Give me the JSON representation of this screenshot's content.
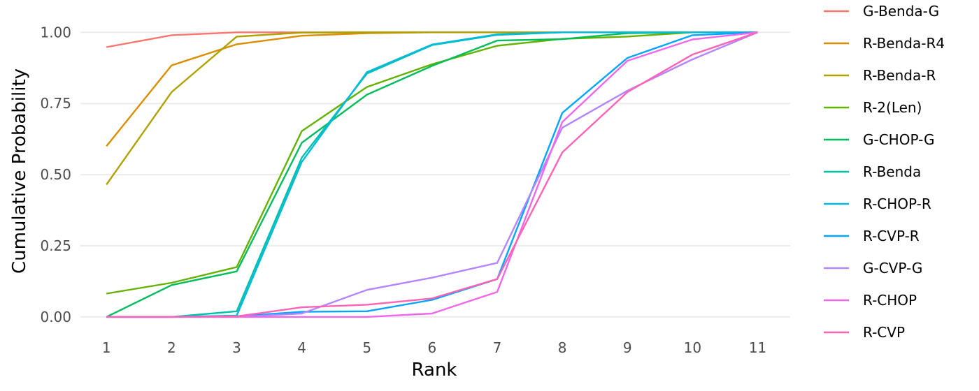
{
  "chart_data": {
    "type": "line",
    "title": "",
    "xlabel": "Rank",
    "ylabel": "Cumulative Probability",
    "x": [
      1,
      2,
      3,
      4,
      5,
      6,
      7,
      8,
      9,
      10,
      11
    ],
    "x_ticks": [
      "1",
      "2",
      "3",
      "4",
      "5",
      "6",
      "7",
      "8",
      "9",
      "10",
      "11"
    ],
    "y_ticks": [
      "0.00",
      "0.25",
      "0.50",
      "0.75",
      "1.00"
    ],
    "y_tick_values": [
      0,
      0.25,
      0.5,
      0.75,
      1.0
    ],
    "xlim": [
      0.6,
      11.5
    ],
    "ylim": [
      -0.01,
      1.04
    ],
    "grid": "horizontal",
    "legend_position": "right",
    "series": [
      {
        "name": "G-Benda-G",
        "color": "#F8766D",
        "values": [
          0.948,
          0.99,
          1.0,
          1.0,
          1.0,
          1.0,
          1.0,
          1.0,
          1.0,
          1.0,
          1.0
        ]
      },
      {
        "name": "R-Benda-R4",
        "color": "#DB8E00",
        "values": [
          0.6,
          0.884,
          0.958,
          0.988,
          0.997,
          1.0,
          1.0,
          1.0,
          1.0,
          1.0,
          1.0
        ]
      },
      {
        "name": "R-Benda-R",
        "color": "#AEA200",
        "values": [
          0.465,
          0.79,
          0.985,
          0.999,
          1.0,
          1.0,
          1.0,
          1.0,
          1.0,
          1.0,
          1.0
        ]
      },
      {
        "name": "R-2(Len)",
        "color": "#64B200",
        "values": [
          0.082,
          0.12,
          0.175,
          0.653,
          0.808,
          0.888,
          0.953,
          0.977,
          0.985,
          1.0,
          1.0
        ]
      },
      {
        "name": "G-CHOP-G",
        "color": "#00BD5C",
        "values": [
          0.0,
          0.112,
          0.16,
          0.612,
          0.781,
          0.882,
          0.971,
          0.976,
          0.997,
          1.0,
          1.0
        ]
      },
      {
        "name": "R-Benda",
        "color": "#00C1A7",
        "values": [
          0.0,
          0.0,
          0.02,
          0.56,
          0.855,
          0.955,
          0.991,
          1.0,
          1.0,
          1.0,
          1.0
        ]
      },
      {
        "name": "R-CHOP-R",
        "color": "#00BADE",
        "values": [
          0.0,
          0.0,
          0.005,
          0.545,
          0.86,
          0.957,
          0.993,
          1.0,
          1.0,
          1.0,
          1.0
        ]
      },
      {
        "name": "R-CVP-R",
        "color": "#00A6FF",
        "values": [
          0.0,
          0.0,
          0.002,
          0.018,
          0.02,
          0.06,
          0.133,
          0.717,
          0.91,
          0.99,
          1.0
        ]
      },
      {
        "name": "G-CVP-G",
        "color": "#B385FF",
        "values": [
          0.0,
          0.0,
          0.0,
          0.012,
          0.095,
          0.138,
          0.19,
          0.665,
          0.795,
          0.905,
          1.0
        ]
      },
      {
        "name": "R-CHOP",
        "color": "#EF67EB",
        "values": [
          0.0,
          0.0,
          0.0,
          0.0,
          0.0,
          0.012,
          0.088,
          0.685,
          0.9,
          0.975,
          1.0
        ]
      },
      {
        "name": "R-CVP",
        "color": "#FF63B6",
        "values": [
          0.0,
          0.0,
          0.002,
          0.034,
          0.043,
          0.065,
          0.133,
          0.578,
          0.79,
          0.922,
          1.0
        ]
      }
    ]
  }
}
